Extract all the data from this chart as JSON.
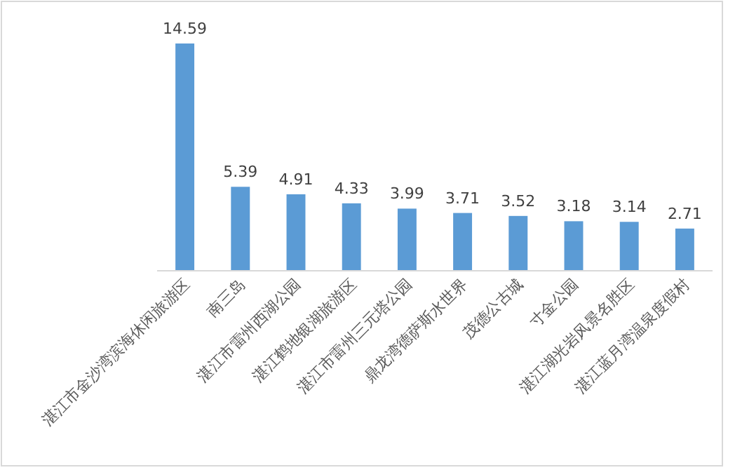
{
  "chart_data": {
    "type": "bar",
    "categories": [
      "湛江市金沙湾滨海休闲旅游区",
      "南三岛",
      "湛江市雷州西湖公园",
      "湛江鹤地银湖旅游区",
      "湛江市雷州三元塔公园",
      "鼎龙湾德萨斯水世界",
      "茂德公古城",
      "寸金公园",
      "湛江湖光岩风景名胜区",
      "湛江蓝月湾温泉度假村"
    ],
    "values": [
      14.59,
      5.39,
      4.91,
      4.33,
      3.99,
      3.71,
      3.52,
      3.18,
      3.14,
      2.71
    ],
    "color": "#5b9bd5",
    "data_labels": true
  }
}
